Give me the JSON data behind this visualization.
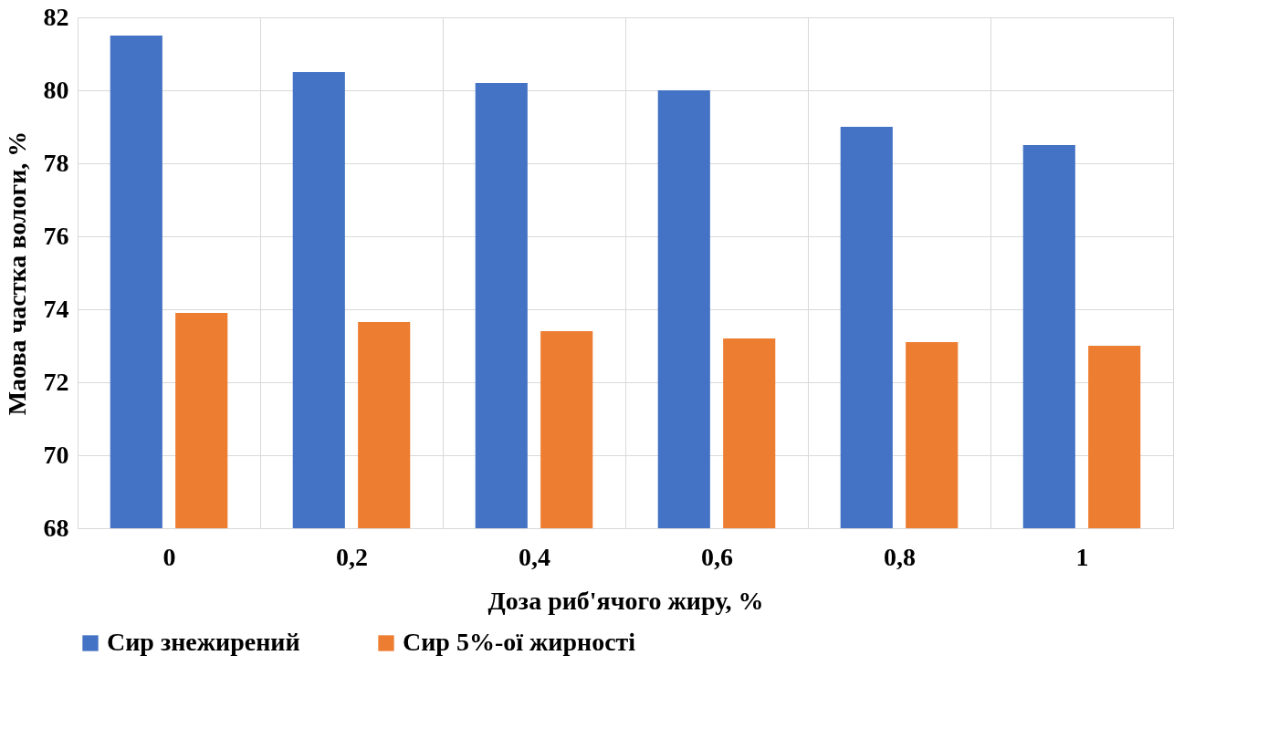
{
  "chart_data": {
    "type": "bar",
    "xlabel": "Доза риб'ячого жиру, %",
    "ylabel": "Маова частка вологи, %",
    "categories": [
      "0",
      "0,2",
      "0,4",
      "0,6",
      "0,8",
      "1"
    ],
    "series": [
      {
        "name": "Сир знежирений",
        "color": "#4472c4",
        "values": [
          81.5,
          80.5,
          80.2,
          80.0,
          79.0,
          78.5
        ]
      },
      {
        "name": "Сир 5%-ої жирності",
        "color": "#ed7d31",
        "values": [
          73.9,
          73.65,
          73.4,
          73.2,
          73.1,
          73.0
        ]
      }
    ],
    "ylim": [
      68,
      82
    ],
    "yticks": [
      68,
      70,
      72,
      74,
      76,
      78,
      80,
      82
    ],
    "grid": true,
    "legend": "bottom"
  }
}
